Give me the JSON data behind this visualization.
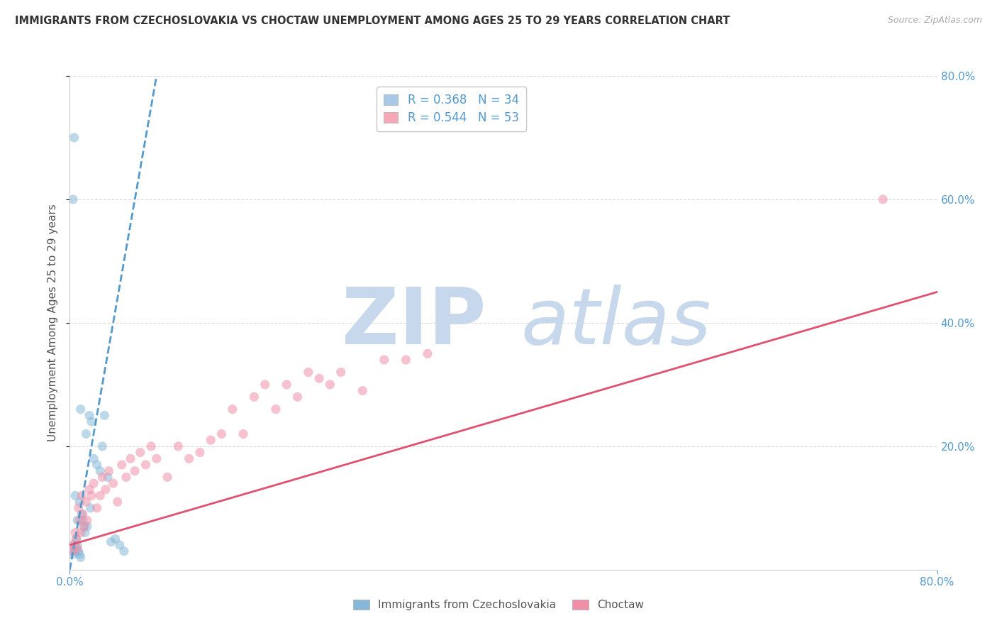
{
  "title": "IMMIGRANTS FROM CZECHOSLOVAKIA VS CHOCTAW UNEMPLOYMENT AMONG AGES 25 TO 29 YEARS CORRELATION CHART",
  "source": "Source: ZipAtlas.com",
  "ylabel": "Unemployment Among Ages 25 to 29 years",
  "xlim": [
    0.0,
    0.8
  ],
  "ylim": [
    0.0,
    0.8
  ],
  "xticks": [
    0.0,
    0.8
  ],
  "yticks": [
    0.2,
    0.4,
    0.6,
    0.8
  ],
  "right_yticks": [
    0.2,
    0.4,
    0.6,
    0.8
  ],
  "legend_entries": [
    {
      "label": "Immigrants from Czechoslovakia",
      "color": "#a8c8e8",
      "R": "0.368",
      "N": "34"
    },
    {
      "label": "Choctaw",
      "color": "#f4a8b8",
      "R": "0.544",
      "N": "53"
    }
  ],
  "blue_scatter_x": [
    0.002,
    0.003,
    0.004,
    0.005,
    0.005,
    0.006,
    0.007,
    0.007,
    0.008,
    0.009,
    0.009,
    0.01,
    0.01,
    0.011,
    0.012,
    0.013,
    0.014,
    0.015,
    0.016,
    0.018,
    0.019,
    0.02,
    0.022,
    0.025,
    0.028,
    0.03,
    0.032,
    0.035,
    0.038,
    0.042,
    0.046,
    0.05,
    0.003,
    0.004
  ],
  "blue_scatter_y": [
    0.03,
    0.025,
    0.04,
    0.03,
    0.12,
    0.05,
    0.04,
    0.08,
    0.03,
    0.025,
    0.11,
    0.02,
    0.26,
    0.09,
    0.08,
    0.07,
    0.06,
    0.22,
    0.07,
    0.25,
    0.1,
    0.24,
    0.18,
    0.17,
    0.16,
    0.2,
    0.25,
    0.15,
    0.045,
    0.05,
    0.04,
    0.03,
    0.6,
    0.7
  ],
  "pink_scatter_x": [
    0.002,
    0.003,
    0.005,
    0.006,
    0.007,
    0.008,
    0.009,
    0.01,
    0.011,
    0.012,
    0.013,
    0.015,
    0.016,
    0.018,
    0.02,
    0.022,
    0.025,
    0.028,
    0.03,
    0.033,
    0.036,
    0.04,
    0.044,
    0.048,
    0.052,
    0.056,
    0.06,
    0.065,
    0.07,
    0.075,
    0.08,
    0.09,
    0.1,
    0.11,
    0.12,
    0.13,
    0.14,
    0.15,
    0.16,
    0.17,
    0.18,
    0.19,
    0.2,
    0.21,
    0.22,
    0.23,
    0.24,
    0.25,
    0.27,
    0.29,
    0.31,
    0.33,
    0.75
  ],
  "pink_scatter_y": [
    0.04,
    0.03,
    0.06,
    0.05,
    0.035,
    0.1,
    0.08,
    0.06,
    0.12,
    0.09,
    0.07,
    0.11,
    0.08,
    0.13,
    0.12,
    0.14,
    0.1,
    0.12,
    0.15,
    0.13,
    0.16,
    0.14,
    0.11,
    0.17,
    0.15,
    0.18,
    0.16,
    0.19,
    0.17,
    0.2,
    0.18,
    0.15,
    0.2,
    0.18,
    0.19,
    0.21,
    0.22,
    0.26,
    0.22,
    0.28,
    0.3,
    0.26,
    0.3,
    0.28,
    0.32,
    0.31,
    0.3,
    0.32,
    0.29,
    0.34,
    0.34,
    0.35,
    0.6
  ],
  "blue_trend_x": [
    0.0,
    0.08
  ],
  "blue_trend_y": [
    0.0,
    0.8
  ],
  "pink_trend_x": [
    0.0,
    0.8
  ],
  "pink_trend_y": [
    0.04,
    0.45
  ],
  "scatter_alpha": 0.55,
  "scatter_size": 90,
  "blue_color": "#88b8d8",
  "pink_color": "#f090a8",
  "blue_trend_color": "#5599cc",
  "pink_trend_color": "#e05070",
  "watermark_zip": "ZIP",
  "watermark_atlas": "atlas",
  "watermark_color": "#c8d8ec",
  "grid_color": "#d8d8d8",
  "bg_color": "#ffffff",
  "tick_color": "#5599cc",
  "title_color": "#333333",
  "source_color": "#aaaaaa"
}
